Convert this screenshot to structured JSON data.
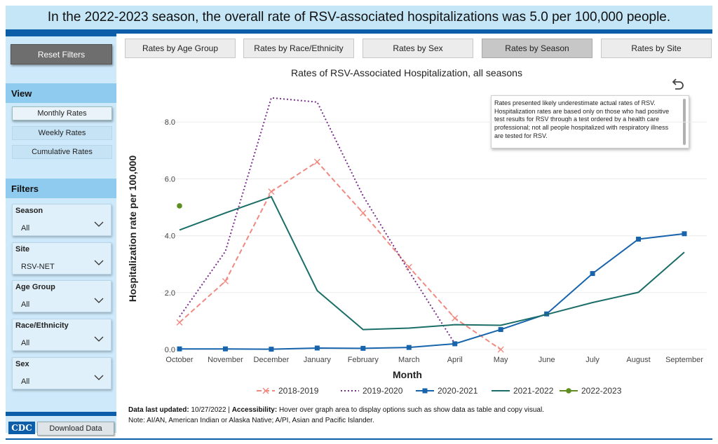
{
  "banner": {
    "text": "In the 2022-2023 season, the overall rate of RSV-associated hospitalizations was 5.0 per 100,000 people."
  },
  "sidebar": {
    "reset_label": "Reset Filters",
    "view_heading": "View",
    "view_buttons": [
      "Monthly Rates",
      "Weekly Rates",
      "Cumulative Rates"
    ],
    "filters_heading": "Filters",
    "filters": [
      {
        "label": "Season",
        "value": "All"
      },
      {
        "label": "Site",
        "value": "RSV-NET"
      },
      {
        "label": "Age Group",
        "value": "All"
      },
      {
        "label": "Race/Ethnicity",
        "value": "All"
      },
      {
        "label": "Sex",
        "value": "All"
      }
    ],
    "logo_text": "CDC",
    "download_label": "Download Data"
  },
  "tabs": [
    "Rates by Age Group",
    "Rates by Race/Ethnicity",
    "Rates by Sex",
    "Rates by Season",
    "Rates by Site"
  ],
  "note": "Rates presented likely underestimate actual rates of RSV. Hospitalization rates are based only on those who had positive test results for RSV through a test ordered by a health care professional; not all people hospitalized with respiratory illness are tested for RSV.",
  "footer": {
    "updated_label": "Data last updated:",
    "updated_value": "10/27/2022",
    "accessibility_label": "Accessibility:",
    "accessibility_text": "Hover over graph area to display options such as show data as table and copy visual.",
    "note": "Note: AI/AN, American Indian or Alaska Native; A/PI, Asian and Pacific Islander."
  },
  "colors": {
    "brand_blue": "#0d5ea8",
    "banner_bg": "#c5e6f7",
    "sidebar_bg": "#cde9fa"
  },
  "chart_data": {
    "type": "line",
    "title": "Rates of RSV-Associated Hospitalization, all seasons",
    "xlabel": "Month",
    "ylabel": "Hospitalization rate per 100,000",
    "categories": [
      "October",
      "November",
      "December",
      "January",
      "February",
      "March",
      "April",
      "May",
      "June",
      "July",
      "August",
      "September"
    ],
    "ylim": [
      0,
      9.2
    ],
    "yticks": [
      "0.0",
      "2.0",
      "4.0",
      "6.0",
      "8.0"
    ],
    "ytick_values": [
      0,
      2,
      4,
      6,
      8
    ],
    "grid": "horizontal",
    "legend_position": "bottom",
    "series": [
      {
        "name": "2018-2019",
        "color": "#f08a80",
        "style": "dashed",
        "marker": "x",
        "values": [
          0.95,
          2.4,
          5.55,
          6.6,
          4.8,
          2.9,
          1.1,
          0.0,
          null,
          null,
          null,
          null
        ]
      },
      {
        "name": "2019-2020",
        "color": "#7a2f8c",
        "style": "dotted",
        "marker": "none",
        "values": [
          1.15,
          3.45,
          8.85,
          8.7,
          5.4,
          2.75,
          0.2,
          null,
          null,
          null,
          null,
          null
        ]
      },
      {
        "name": "2020-2021",
        "color": "#1764ad",
        "style": "solid",
        "marker": "square",
        "values": [
          0.02,
          0.02,
          0.01,
          0.05,
          0.04,
          0.07,
          0.2,
          0.7,
          1.25,
          2.67,
          3.88,
          4.07
        ]
      },
      {
        "name": "2021-2022",
        "color": "#1b6e67",
        "style": "solid",
        "marker": "none",
        "values": [
          4.2,
          4.8,
          5.37,
          2.07,
          0.7,
          0.75,
          0.87,
          0.85,
          1.23,
          1.65,
          2.01,
          3.42
        ]
      },
      {
        "name": "2022-2023",
        "color": "#5f8d1f",
        "style": "solid",
        "marker": "circle",
        "values": [
          5.05,
          null,
          null,
          null,
          null,
          null,
          null,
          null,
          null,
          null,
          null,
          null
        ]
      }
    ]
  }
}
